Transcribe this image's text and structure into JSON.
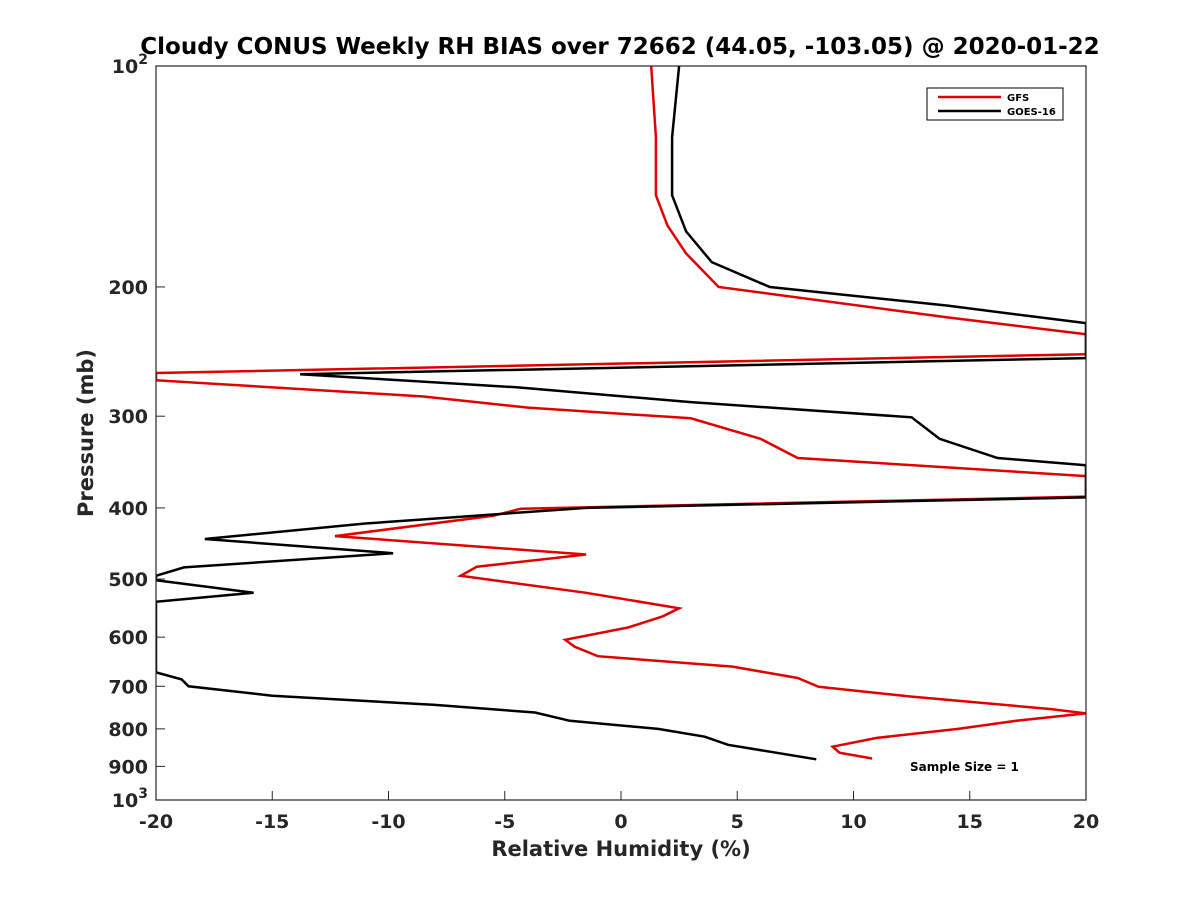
{
  "chart_data": {
    "type": "line",
    "title": "Cloudy CONUS Weekly RH BIAS over 72662 (44.05, -103.05) @ 2020-01-22",
    "xlabel": "Relative Humidity (%)",
    "ylabel": "Pressure (mb)",
    "xlim": [
      -20,
      20
    ],
    "ylim": [
      100,
      1000
    ],
    "yscale": "log",
    "y_reversed": true,
    "grid": false,
    "legend_position": "top-right",
    "x_ticks": [
      "-20",
      "-15",
      "-10",
      "-5",
      "0",
      "5",
      "10",
      "15",
      "20"
    ],
    "x_tick_values": [
      -20,
      -15,
      -10,
      -5,
      0,
      5,
      10,
      15,
      20
    ],
    "y_ticks": [
      {
        "value": 100,
        "base": "10",
        "exp": "2"
      },
      {
        "value": 200,
        "label": "200"
      },
      {
        "value": 300,
        "label": "300"
      },
      {
        "value": 400,
        "label": "400"
      },
      {
        "value": 500,
        "label": "500"
      },
      {
        "value": 600,
        "label": "600"
      },
      {
        "value": 700,
        "label": "700"
      },
      {
        "value": 800,
        "label": "800"
      },
      {
        "value": 900,
        "label": "900"
      },
      {
        "value": 1000,
        "base": "10",
        "exp": "3"
      }
    ],
    "annotation": "Sample Size = 1",
    "series": [
      {
        "name": "GFS",
        "color": "#e00000",
        "points": [
          [
            1.3,
            100
          ],
          [
            1.5,
            125
          ],
          [
            1.5,
            150
          ],
          [
            2.0,
            165
          ],
          [
            2.8,
            180
          ],
          [
            4.2,
            200
          ],
          [
            14.0,
            220
          ],
          [
            20.0,
            232
          ],
          [
            20.0,
            247
          ],
          [
            -20.0,
            262
          ],
          [
            -20.0,
            268
          ],
          [
            -8.5,
            282
          ],
          [
            -4.0,
            292
          ],
          [
            3.0,
            302
          ],
          [
            6.0,
            322
          ],
          [
            7.6,
            342
          ],
          [
            20.0,
            362
          ],
          [
            20.0,
            386
          ],
          [
            -4.3,
            401
          ],
          [
            -5.5,
            410
          ],
          [
            -12.3,
            437
          ],
          [
            -1.5,
            463
          ],
          [
            -6.2,
            481
          ],
          [
            -6.9,
            495
          ],
          [
            -1.5,
            522
          ],
          [
            2.5,
            548
          ],
          [
            1.8,
            562
          ],
          [
            0.3,
            582
          ],
          [
            -2.4,
            605
          ],
          [
            -2.0,
            618
          ],
          [
            -1.0,
            637
          ],
          [
            4.8,
            658
          ],
          [
            7.6,
            682
          ],
          [
            8.5,
            701
          ],
          [
            12.5,
            723
          ],
          [
            18.5,
            752
          ],
          [
            20.0,
            762
          ],
          [
            17.0,
            780
          ],
          [
            14.5,
            800
          ],
          [
            11.0,
            823
          ],
          [
            9.1,
            846
          ],
          [
            9.4,
            862
          ],
          [
            10.8,
            878
          ]
        ]
      },
      {
        "name": "GOES-16",
        "color": "#000000",
        "points": [
          [
            2.5,
            100
          ],
          [
            2.2,
            125
          ],
          [
            2.2,
            150
          ],
          [
            2.8,
            168
          ],
          [
            3.9,
            185
          ],
          [
            6.4,
            200
          ],
          [
            14.0,
            212
          ],
          [
            18.5,
            221
          ],
          [
            20.0,
            224
          ],
          [
            20.0,
            250
          ],
          [
            -13.8,
            263
          ],
          [
            -4.5,
            274
          ],
          [
            3.0,
            287
          ],
          [
            12.5,
            301
          ],
          [
            13.7,
            322
          ],
          [
            16.2,
            342
          ],
          [
            20.0,
            350
          ],
          [
            20.0,
            387
          ],
          [
            -1.5,
            400
          ],
          [
            -11.0,
            420
          ],
          [
            -17.9,
            441
          ],
          [
            -9.8,
            461
          ],
          [
            -18.8,
            482
          ],
          [
            -20.0,
            495
          ],
          [
            -20.0,
            502
          ],
          [
            -15.8,
            522
          ],
          [
            -20.0,
            537
          ],
          [
            -20.0,
            670
          ],
          [
            -18.9,
            685
          ],
          [
            -18.6,
            700
          ],
          [
            -15.0,
            721
          ],
          [
            -8.0,
            742
          ],
          [
            -3.7,
            760
          ],
          [
            -2.2,
            780
          ],
          [
            1.6,
            800
          ],
          [
            3.6,
            820
          ],
          [
            4.6,
            841
          ],
          [
            8.4,
            880
          ]
        ]
      }
    ]
  }
}
